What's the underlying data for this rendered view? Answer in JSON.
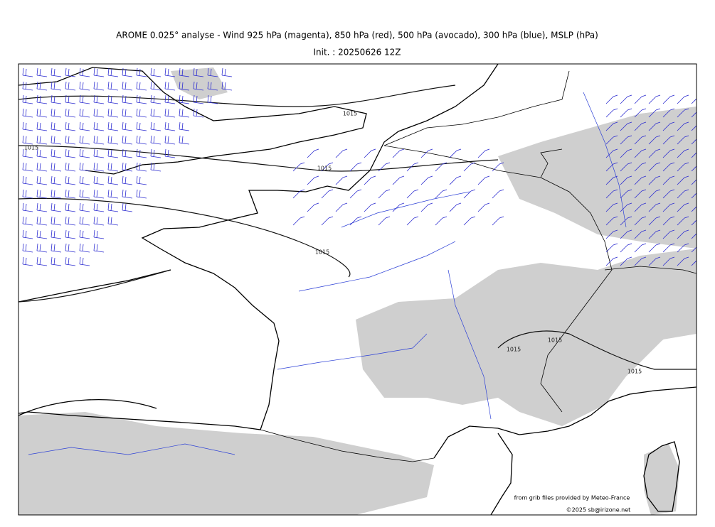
{
  "header": {
    "title": "AROME 0.025° analyse - Wind 925 hPa (magenta), 850 hPa (red), 500 hPa (avocado), 300 hPa (blue), MSLP (hPa)",
    "subtitle": "Init. : 20250626 12Z"
  },
  "map": {
    "contour_labels": [
      "1015",
      "1015",
      "1015",
      "1015",
      "1015",
      "1015",
      "1015"
    ],
    "credits": [
      "from grib files provided by Meteo-France",
      "©2025 sb@irizone.net"
    ]
  }
}
